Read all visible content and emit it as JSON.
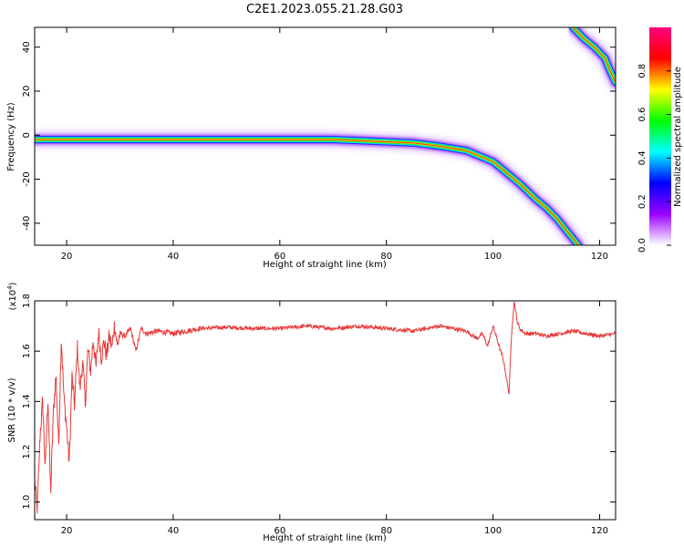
{
  "title": "C2E1.2023.055.21.28.G03",
  "chart_data": [
    {
      "type": "heatmap",
      "xlabel": "Height of straight line (km)",
      "ylabel": "Frequency (Hz)",
      "xlim": [
        14,
        123
      ],
      "ylim": [
        -50,
        49
      ],
      "xticks": [
        20,
        40,
        60,
        80,
        100,
        120
      ],
      "yticks": [
        -40,
        -20,
        0,
        20,
        40
      ],
      "colorbar": {
        "label": "Normalized spectral amplitude",
        "range": [
          0,
          1
        ],
        "ticks": [
          "0.0",
          "0.2",
          "0.4",
          "0.6",
          "0.8"
        ],
        "colors": [
          "#ffffff",
          "#9900ff",
          "#0000ff",
          "#00ffff",
          "#00ff00",
          "#ffff00",
          "#ff0000",
          "#ff0080"
        ]
      },
      "ridges": [
        {
          "points": [
            [
              14,
              -2
            ],
            [
              20,
              -2
            ],
            [
              30,
              -2
            ],
            [
              40,
              -2
            ],
            [
              50,
              -2
            ],
            [
              60,
              -2
            ],
            [
              70,
              -2
            ],
            [
              75,
              -2.5
            ],
            [
              80,
              -3
            ],
            [
              85,
              -3.5
            ],
            [
              90,
              -5
            ],
            [
              95,
              -7
            ],
            [
              100,
              -12
            ],
            [
              102,
              -16
            ],
            [
              105,
              -22
            ],
            [
              108,
              -29
            ],
            [
              110,
              -33
            ],
            [
              112,
              -38
            ],
            [
              114,
              -44
            ],
            [
              116,
              -50
            ]
          ]
        },
        {
          "points": [
            [
              115,
              49
            ],
            [
              117,
              44
            ],
            [
              119,
              40
            ],
            [
              121,
              35
            ],
            [
              122,
              29
            ],
            [
              123,
              24
            ]
          ]
        }
      ]
    },
    {
      "type": "line",
      "xlabel": "Height of straight line (km)",
      "ylabel": "SNR (10 * v/v)",
      "yscale_label": "(x10",
      "yscale_exp": "4",
      "scale": 10000,
      "xlim": [
        14,
        123
      ],
      "ylim": [
        9300,
        18000
      ],
      "xticks": [
        20,
        40,
        60,
        80,
        100,
        120
      ],
      "yticks": [
        "1.0",
        "1.2",
        "1.4",
        "1.6",
        "1.8"
      ],
      "color": "#e83a3a",
      "series": [
        {
          "x": [
            14,
            14.5,
            15,
            15.5,
            16,
            16.5,
            17,
            17.5,
            18,
            18.5,
            19,
            19.5,
            20,
            20.5,
            21,
            21.5,
            22,
            22.5,
            23,
            23.5,
            24,
            24.5,
            25,
            25.5,
            26,
            26.5,
            27,
            27.5,
            28,
            28.5,
            29,
            29.5,
            30,
            31,
            32,
            33,
            34,
            35,
            37,
            40,
            45,
            50,
            55,
            60,
            65,
            70,
            75,
            80,
            85,
            90,
            95,
            97,
            98,
            99,
            100,
            101,
            102,
            103,
            103.5,
            104,
            104.5,
            105,
            106,
            108,
            110,
            115,
            120,
            123
          ],
          "y": [
            10800,
            9700,
            12600,
            14000,
            11300,
            14200,
            10300,
            13500,
            15100,
            12200,
            16600,
            14100,
            13000,
            11500,
            15000,
            13800,
            16200,
            14500,
            15600,
            13900,
            16100,
            15200,
            16500,
            15300,
            16800,
            15700,
            16400,
            15800,
            16600,
            16100,
            17100,
            16200,
            16700,
            16600,
            16900,
            16000,
            16900,
            16700,
            16800,
            16700,
            16900,
            16950,
            16900,
            16900,
            17000,
            16900,
            17000,
            16900,
            16800,
            17000,
            16800,
            16500,
            16700,
            16200,
            17000,
            16300,
            15600,
            14300,
            16800,
            18000,
            17200,
            16900,
            16700,
            16700,
            16600,
            16800,
            16600,
            16700
          ]
        }
      ]
    }
  ]
}
